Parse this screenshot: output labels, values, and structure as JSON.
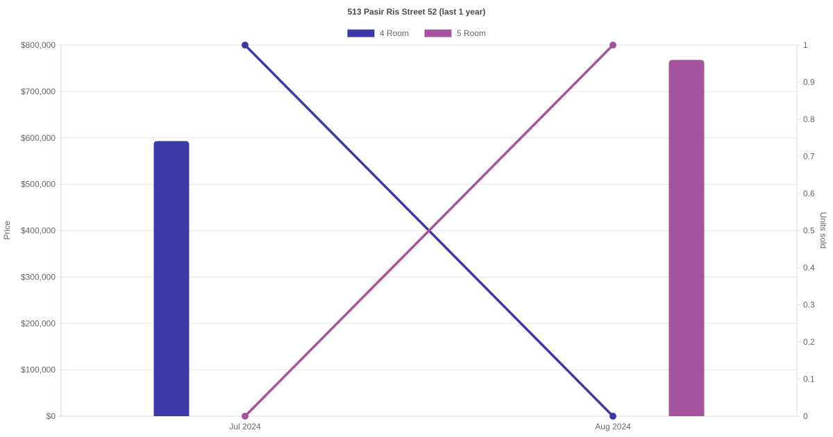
{
  "chart_data": {
    "type": "mixed",
    "title": "513 Pasir Ris Street 52 (last 1 year)",
    "categories": [
      "Jul 2024",
      "Aug 2024"
    ],
    "series": [
      {
        "name": "4 Room",
        "type": "bar",
        "axis": "left",
        "color": "#3d38a8",
        "values": [
          593000,
          null
        ]
      },
      {
        "name": "5 Room",
        "type": "bar",
        "axis": "left",
        "color": "#a4549e",
        "values": [
          null,
          768000
        ]
      },
      {
        "name": "4 Room",
        "type": "line",
        "axis": "right",
        "color": "#3d38a8",
        "values": [
          1,
          0
        ]
      },
      {
        "name": "5 Room",
        "type": "line",
        "axis": "right",
        "color": "#a4549e",
        "values": [
          0,
          1
        ]
      }
    ],
    "left_axis": {
      "label": "Price",
      "min": 0,
      "max": 800000,
      "step": 100000,
      "tick_format": "currency",
      "tick_labels": [
        "$0",
        "$100,000",
        "$200,000",
        "$300,000",
        "$400,000",
        "$500,000",
        "$600,000",
        "$700,000",
        "$800,000"
      ]
    },
    "right_axis": {
      "label": "Units sold",
      "min": 0,
      "max": 1,
      "step": 0.1,
      "tick_labels": [
        "0",
        "0.1",
        "0.2",
        "0.3",
        "0.4",
        "0.5",
        "0.6",
        "0.7",
        "0.8",
        "0.9",
        "1"
      ]
    },
    "grid": true,
    "legend_position": "top",
    "colors": {
      "grid": "#e6e6e6",
      "axis_border": "#d9d9d9",
      "tick_text": "#666666",
      "title_text": "#4a4a4a"
    }
  },
  "legend": {
    "items": [
      {
        "label": "4 Room",
        "color": "#3d38a8"
      },
      {
        "label": "5 Room",
        "color": "#a4549e"
      }
    ]
  }
}
